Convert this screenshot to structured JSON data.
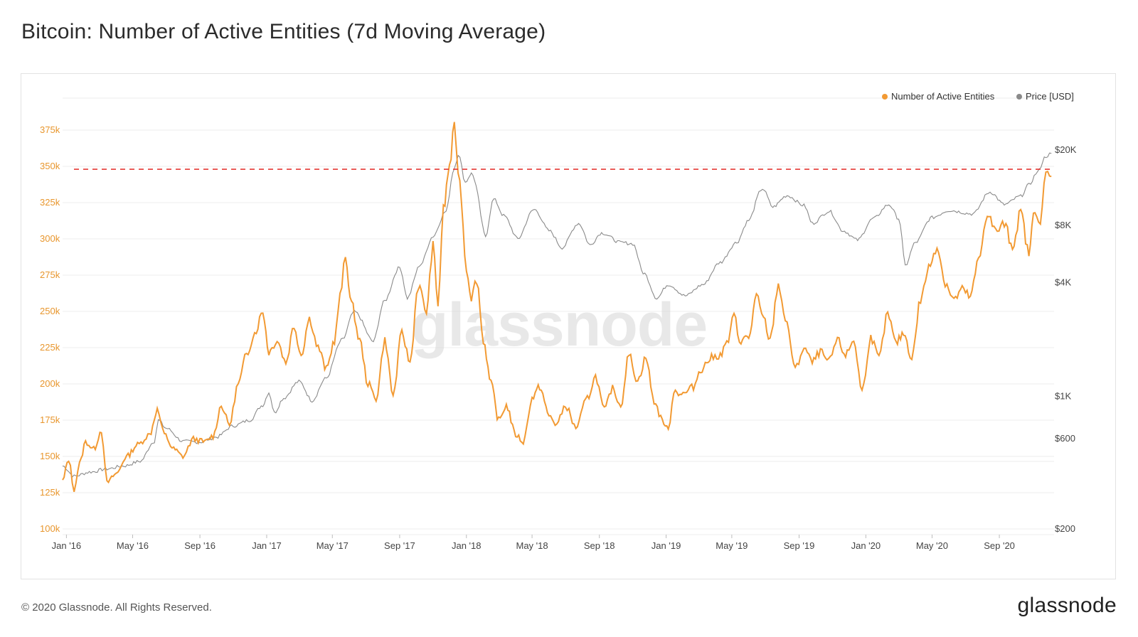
{
  "title": "Bitcoin: Number of Active Entities (7d Moving Average)",
  "footer": {
    "copyright": "© 2020 Glassnode. All Rights Reserved.",
    "brand": "glassnode"
  },
  "watermark": "glassnode",
  "colors": {
    "entities": "#f29a33",
    "price": "#8a8a8a",
    "reference": "#e53935",
    "grid": "#ececec",
    "left_axis_text": "#e8962d"
  },
  "chart_data": {
    "type": "line",
    "title": "Bitcoin: Number of Active Entities (7d Moving Average)",
    "x_tick_labels": [
      "Jan '16",
      "May '16",
      "Sep '16",
      "Jan '17",
      "May '17",
      "Sep '17",
      "Jan '18",
      "May '18",
      "Sep '18",
      "Jan '19",
      "May '19",
      "Sep '19",
      "Jan '20",
      "May '20",
      "Sep '20"
    ],
    "xlim": [
      "2015-12-25",
      "2020-12-10"
    ],
    "y_left": {
      "ticks": [
        100000,
        125000,
        150000,
        175000,
        200000,
        225000,
        250000,
        275000,
        300000,
        325000,
        350000,
        375000
      ],
      "tick_labels": [
        "100k",
        "125k",
        "150k",
        "175k",
        "200k",
        "225k",
        "250k",
        "275k",
        "300k",
        "325k",
        "350k",
        "375k"
      ],
      "ylim": [
        100000,
        390000
      ]
    },
    "y_right": {
      "scale": "log",
      "ticks": [
        200,
        600,
        1000,
        4000,
        8000,
        20000
      ],
      "tick_labels": [
        "$200",
        "$600",
        "$1K",
        "$4K",
        "$8K",
        "$20K"
      ]
    },
    "reference_line": {
      "axis": "left",
      "value": 348000,
      "style": "dashed"
    },
    "legend": {
      "position": "top-right",
      "entries": [
        "Number of Active Entities",
        "Price [USD]"
      ]
    },
    "grid": true,
    "series": [
      {
        "name": "Number of Active Entities",
        "axis": "left",
        "points": [
          [
            "2015-12-25",
            133000
          ],
          [
            "2016-01-05",
            148000
          ],
          [
            "2016-01-15",
            127000
          ],
          [
            "2016-01-25",
            145000
          ],
          [
            "2016-02-05",
            160000
          ],
          [
            "2016-02-20",
            155000
          ],
          [
            "2016-03-05",
            168000
          ],
          [
            "2016-03-15",
            132000
          ],
          [
            "2016-04-01",
            138000
          ],
          [
            "2016-04-20",
            150000
          ],
          [
            "2016-05-10",
            158000
          ],
          [
            "2016-06-01",
            165000
          ],
          [
            "2016-06-15",
            182000
          ],
          [
            "2016-06-28",
            165000
          ],
          [
            "2016-07-15",
            155000
          ],
          [
            "2016-08-01",
            150000
          ],
          [
            "2016-08-20",
            162000
          ],
          [
            "2016-09-10",
            160000
          ],
          [
            "2016-09-25",
            164000
          ],
          [
            "2016-10-10",
            185000
          ],
          [
            "2016-10-25",
            172000
          ],
          [
            "2016-11-10",
            200000
          ],
          [
            "2016-11-25",
            220000
          ],
          [
            "2016-12-10",
            235000
          ],
          [
            "2016-12-25",
            250000
          ],
          [
            "2017-01-05",
            222000
          ],
          [
            "2017-01-20",
            230000
          ],
          [
            "2017-02-05",
            215000
          ],
          [
            "2017-02-20",
            240000
          ],
          [
            "2017-03-05",
            220000
          ],
          [
            "2017-03-20",
            245000
          ],
          [
            "2017-04-05",
            225000
          ],
          [
            "2017-04-20",
            210000
          ],
          [
            "2017-05-05",
            230000
          ],
          [
            "2017-05-15",
            260000
          ],
          [
            "2017-05-25",
            287000
          ],
          [
            "2017-06-05",
            255000
          ],
          [
            "2017-06-20",
            230000
          ],
          [
            "2017-07-05",
            200000
          ],
          [
            "2017-07-20",
            190000
          ],
          [
            "2017-08-05",
            230000
          ],
          [
            "2017-08-20",
            192000
          ],
          [
            "2017-09-05",
            235000
          ],
          [
            "2017-09-20",
            215000
          ],
          [
            "2017-10-05",
            268000
          ],
          [
            "2017-10-20",
            250000
          ],
          [
            "2017-11-01",
            295000
          ],
          [
            "2017-11-10",
            255000
          ],
          [
            "2017-11-20",
            320000
          ],
          [
            "2017-12-01",
            350000
          ],
          [
            "2017-12-10",
            376000
          ],
          [
            "2017-12-20",
            338000
          ],
          [
            "2018-01-01",
            280000
          ],
          [
            "2018-01-10",
            260000
          ],
          [
            "2018-01-20",
            272000
          ],
          [
            "2018-02-01",
            230000
          ],
          [
            "2018-02-15",
            200000
          ],
          [
            "2018-03-01",
            175000
          ],
          [
            "2018-03-15",
            185000
          ],
          [
            "2018-04-01",
            165000
          ],
          [
            "2018-04-15",
            160000
          ],
          [
            "2018-05-01",
            190000
          ],
          [
            "2018-05-15",
            198000
          ],
          [
            "2018-06-01",
            178000
          ],
          [
            "2018-06-15",
            172000
          ],
          [
            "2018-07-01",
            185000
          ],
          [
            "2018-07-20",
            170000
          ],
          [
            "2018-08-10",
            190000
          ],
          [
            "2018-08-25",
            205000
          ],
          [
            "2018-09-10",
            182000
          ],
          [
            "2018-09-25",
            197000
          ],
          [
            "2018-10-10",
            185000
          ],
          [
            "2018-10-25",
            220000
          ],
          [
            "2018-11-10",
            202000
          ],
          [
            "2018-11-25",
            218000
          ],
          [
            "2018-12-10",
            188000
          ],
          [
            "2018-12-25",
            175000
          ],
          [
            "2019-01-05",
            168000
          ],
          [
            "2019-01-15",
            195000
          ],
          [
            "2019-02-01",
            193000
          ],
          [
            "2019-02-20",
            198000
          ],
          [
            "2019-03-05",
            210000
          ],
          [
            "2019-03-25",
            218000
          ],
          [
            "2019-04-10",
            220000
          ],
          [
            "2019-04-25",
            230000
          ],
          [
            "2019-05-05",
            248000
          ],
          [
            "2019-05-15",
            230000
          ],
          [
            "2019-06-01",
            232000
          ],
          [
            "2019-06-15",
            260000
          ],
          [
            "2019-06-28",
            245000
          ],
          [
            "2019-07-10",
            230000
          ],
          [
            "2019-07-25",
            268000
          ],
          [
            "2019-08-10",
            240000
          ],
          [
            "2019-08-25",
            210000
          ],
          [
            "2019-09-10",
            225000
          ],
          [
            "2019-09-25",
            215000
          ],
          [
            "2019-10-10",
            222000
          ],
          [
            "2019-10-25",
            215000
          ],
          [
            "2019-11-10",
            230000
          ],
          [
            "2019-11-25",
            220000
          ],
          [
            "2019-12-10",
            230000
          ],
          [
            "2019-12-25",
            195000
          ],
          [
            "2020-01-10",
            232000
          ],
          [
            "2020-01-25",
            218000
          ],
          [
            "2020-02-10",
            248000
          ],
          [
            "2020-02-25",
            228000
          ],
          [
            "2020-03-10",
            235000
          ],
          [
            "2020-03-25",
            218000
          ],
          [
            "2020-04-10",
            258000
          ],
          [
            "2020-04-25",
            280000
          ],
          [
            "2020-05-10",
            295000
          ],
          [
            "2020-05-25",
            270000
          ],
          [
            "2020-06-10",
            258000
          ],
          [
            "2020-06-25",
            265000
          ],
          [
            "2020-07-10",
            260000
          ],
          [
            "2020-07-25",
            285000
          ],
          [
            "2020-08-10",
            318000
          ],
          [
            "2020-08-25",
            305000
          ],
          [
            "2020-09-10",
            310000
          ],
          [
            "2020-09-25",
            295000
          ],
          [
            "2020-10-10",
            318000
          ],
          [
            "2020-10-25",
            290000
          ],
          [
            "2020-11-05",
            322000
          ],
          [
            "2020-11-15",
            310000
          ],
          [
            "2020-11-25",
            345000
          ],
          [
            "2020-12-05",
            343000
          ]
        ]
      },
      {
        "name": "Price [USD]",
        "axis": "right",
        "points": [
          [
            "2015-12-25",
            430
          ],
          [
            "2016-01-15",
            380
          ],
          [
            "2016-02-15",
            400
          ],
          [
            "2016-03-15",
            415
          ],
          [
            "2016-04-15",
            430
          ],
          [
            "2016-05-15",
            455
          ],
          [
            "2016-06-10",
            580
          ],
          [
            "2016-06-17",
            750
          ],
          [
            "2016-07-01",
            680
          ],
          [
            "2016-08-01",
            580
          ],
          [
            "2016-09-01",
            575
          ],
          [
            "2016-10-01",
            610
          ],
          [
            "2016-11-01",
            700
          ],
          [
            "2016-12-01",
            750
          ],
          [
            "2016-12-25",
            900
          ],
          [
            "2017-01-05",
            1050
          ],
          [
            "2017-01-15",
            820
          ],
          [
            "2017-02-01",
            980
          ],
          [
            "2017-03-01",
            1200
          ],
          [
            "2017-03-25",
            950
          ],
          [
            "2017-04-20",
            1250
          ],
          [
            "2017-05-20",
            2000
          ],
          [
            "2017-06-10",
            2800
          ],
          [
            "2017-07-15",
            1950
          ],
          [
            "2017-08-05",
            3200
          ],
          [
            "2017-09-01",
            4800
          ],
          [
            "2017-09-15",
            3300
          ],
          [
            "2017-10-10",
            5000
          ],
          [
            "2017-11-01",
            7000
          ],
          [
            "2017-11-25",
            9500
          ],
          [
            "2017-12-10",
            16000
          ],
          [
            "2017-12-17",
            19000
          ],
          [
            "2017-12-30",
            13500
          ],
          [
            "2018-01-10",
            15000
          ],
          [
            "2018-02-05",
            7000
          ],
          [
            "2018-02-20",
            11000
          ],
          [
            "2018-03-10",
            9000
          ],
          [
            "2018-04-05",
            6800
          ],
          [
            "2018-05-05",
            9700
          ],
          [
            "2018-06-01",
            7500
          ],
          [
            "2018-06-25",
            6100
          ],
          [
            "2018-07-25",
            8200
          ],
          [
            "2018-08-15",
            6300
          ],
          [
            "2018-09-05",
            7300
          ],
          [
            "2018-10-10",
            6500
          ],
          [
            "2018-11-01",
            6400
          ],
          [
            "2018-11-20",
            4500
          ],
          [
            "2018-12-15",
            3300
          ],
          [
            "2019-01-05",
            3900
          ],
          [
            "2019-02-05",
            3400
          ],
          [
            "2019-03-10",
            3900
          ],
          [
            "2019-04-10",
            5100
          ],
          [
            "2019-05-10",
            6500
          ],
          [
            "2019-06-01",
            8500
          ],
          [
            "2019-06-26",
            12500
          ],
          [
            "2019-07-15",
            10000
          ],
          [
            "2019-08-10",
            11500
          ],
          [
            "2019-09-10",
            10200
          ],
          [
            "2019-09-25",
            8200
          ],
          [
            "2019-10-26",
            9500
          ],
          [
            "2019-11-20",
            7500
          ],
          [
            "2019-12-17",
            6700
          ],
          [
            "2020-01-15",
            8700
          ],
          [
            "2020-02-12",
            10300
          ],
          [
            "2020-03-01",
            8700
          ],
          [
            "2020-03-13",
            4900
          ],
          [
            "2020-04-01",
            6500
          ],
          [
            "2020-05-01",
            8800
          ],
          [
            "2020-06-01",
            9600
          ],
          [
            "2020-07-15",
            9200
          ],
          [
            "2020-08-15",
            12000
          ],
          [
            "2020-09-10",
            10300
          ],
          [
            "2020-10-10",
            11400
          ],
          [
            "2020-10-25",
            13100
          ],
          [
            "2020-11-10",
            15300
          ],
          [
            "2020-11-25",
            18500
          ],
          [
            "2020-12-05",
            19200
          ]
        ]
      }
    ]
  }
}
